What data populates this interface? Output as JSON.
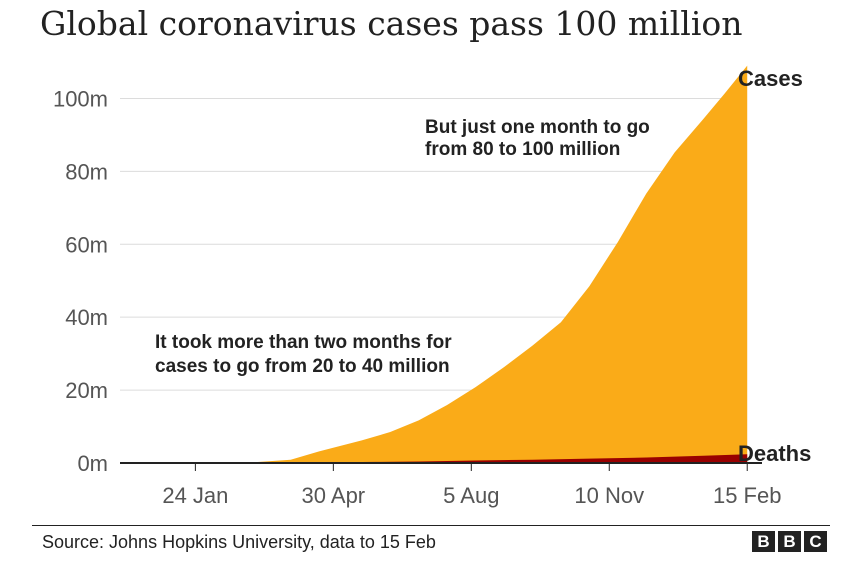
{
  "chart_data": {
    "type": "area",
    "title": "Global coronavirus cases pass 100 million",
    "xlabel": "",
    "ylabel": "",
    "y_unit": "millions",
    "ylim": [
      0,
      110
    ],
    "y_ticks": [
      0,
      20,
      40,
      60,
      80,
      100
    ],
    "y_tick_labels": [
      "0m",
      "20m",
      "40m",
      "60m",
      "80m",
      "100m"
    ],
    "x_day_range": [
      -30,
      401
    ],
    "x_ticks": [
      {
        "day": 23,
        "label": "24 Jan"
      },
      {
        "day": 120,
        "label": "30 Apr"
      },
      {
        "day": 217,
        "label": "5 Aug"
      },
      {
        "day": 314,
        "label": "10 Nov"
      },
      {
        "day": 411,
        "label": "15 Feb"
      }
    ],
    "x_note": "day numbers counted from 1 Jan 2020; 15 Feb is 15 Feb 2021",
    "series": [
      {
        "name": "Cases",
        "color": "#FAAB18",
        "days": [
          0,
          60,
          90,
          110,
          140,
          160,
          180,
          200,
          220,
          240,
          260,
          280,
          300,
          320,
          340,
          360,
          380,
          395,
          411
        ],
        "values": [
          0,
          0.1,
          0.9,
          3.2,
          6.2,
          8.5,
          11.7,
          15.9,
          20.8,
          26.3,
          32.2,
          38.6,
          48.5,
          60.6,
          73.9,
          85.2,
          94.3,
          101.3,
          109.0
        ]
      },
      {
        "name": "Deaths",
        "color": "#990000",
        "days": [
          0,
          60,
          90,
          120,
          150,
          180,
          220,
          260,
          300,
          340,
          380,
          411
        ],
        "values": [
          0,
          0.01,
          0.1,
          0.2,
          0.3,
          0.4,
          0.7,
          0.9,
          1.2,
          1.5,
          2.0,
          2.4
        ]
      }
    ],
    "annotations": [
      {
        "lines": [
          "But just one month to go",
          "from 80 to 100 million"
        ]
      },
      {
        "lines": [
          "It took more than two months for",
          "cases to go from 20 to 40 million"
        ]
      }
    ]
  },
  "footer": {
    "source": "Source: Johns Hopkins University, data to 15 Feb",
    "logo_letters": [
      "B",
      "B",
      "C"
    ]
  }
}
